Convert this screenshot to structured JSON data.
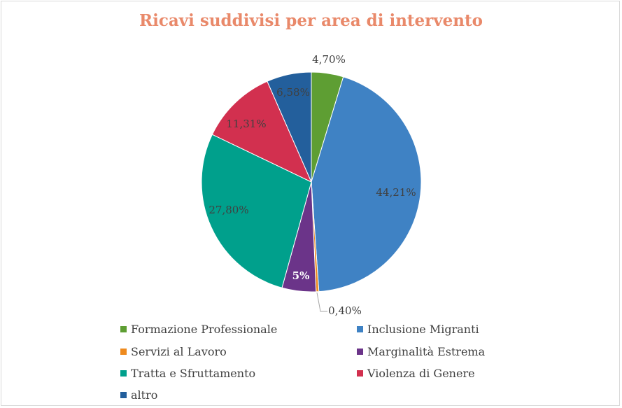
{
  "chart_data": {
    "type": "pie",
    "title": "Ricavi suddivisi per area di intervento",
    "slices": [
      {
        "name": "Formazione Professionale",
        "value": 4.7,
        "label": "4,70%",
        "color": "#5e9e33"
      },
      {
        "name": "Inclusione Migranti",
        "value": 44.21,
        "label": "44,21%",
        "color": "#3f82c4"
      },
      {
        "name": "Servizi al Lavoro",
        "value": 0.4,
        "label": "0,40%",
        "color": "#ee8a1e"
      },
      {
        "name": "Marginalità Estrema",
        "value": 5.0,
        "label": "5%",
        "color": "#6b3489"
      },
      {
        "name": "Tratta e Sfruttamento",
        "value": 27.8,
        "label": "27,80%",
        "color": "#00a08c"
      },
      {
        "name": "Violenza di Genere",
        "value": 11.31,
        "label": "11,31%",
        "color": "#d2304f"
      },
      {
        "name": "altro",
        "value": 6.58,
        "label": "6,58%",
        "color": "#235f9c"
      }
    ],
    "legend_position": "bottom"
  }
}
